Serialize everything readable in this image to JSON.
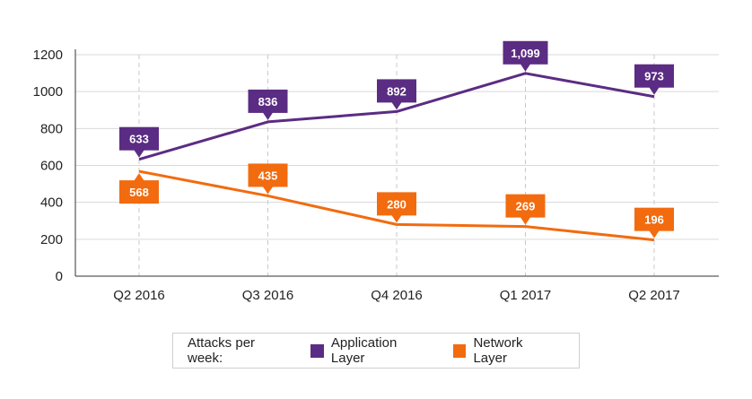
{
  "chart_data": {
    "type": "line",
    "categories": [
      "Q2 2016",
      "Q3 2016",
      "Q4 2016",
      "Q1 2017",
      "Q2 2017"
    ],
    "series": [
      {
        "name": "Application Layer",
        "values": [
          633,
          836,
          892,
          1099,
          973
        ],
        "labels": [
          "633",
          "836",
          "892",
          "1,099",
          "973"
        ],
        "color": "#5b2c83",
        "label_position": "above"
      },
      {
        "name": "Network Layer",
        "values": [
          568,
          435,
          280,
          269,
          196
        ],
        "labels": [
          "568",
          "435",
          "280",
          "269",
          "196"
        ],
        "color": "#f26b0f",
        "label_position": "mixed"
      }
    ],
    "ylim": [
      0,
      1200
    ],
    "yticks": [
      0,
      200,
      400,
      600,
      800,
      1000,
      1200
    ],
    "ytick_labels": [
      "0",
      "200",
      "400",
      "600",
      "800",
      "1000",
      "1200"
    ],
    "grid": true,
    "legend": {
      "title": "Attacks per week:",
      "placement": "bottom-center"
    }
  }
}
